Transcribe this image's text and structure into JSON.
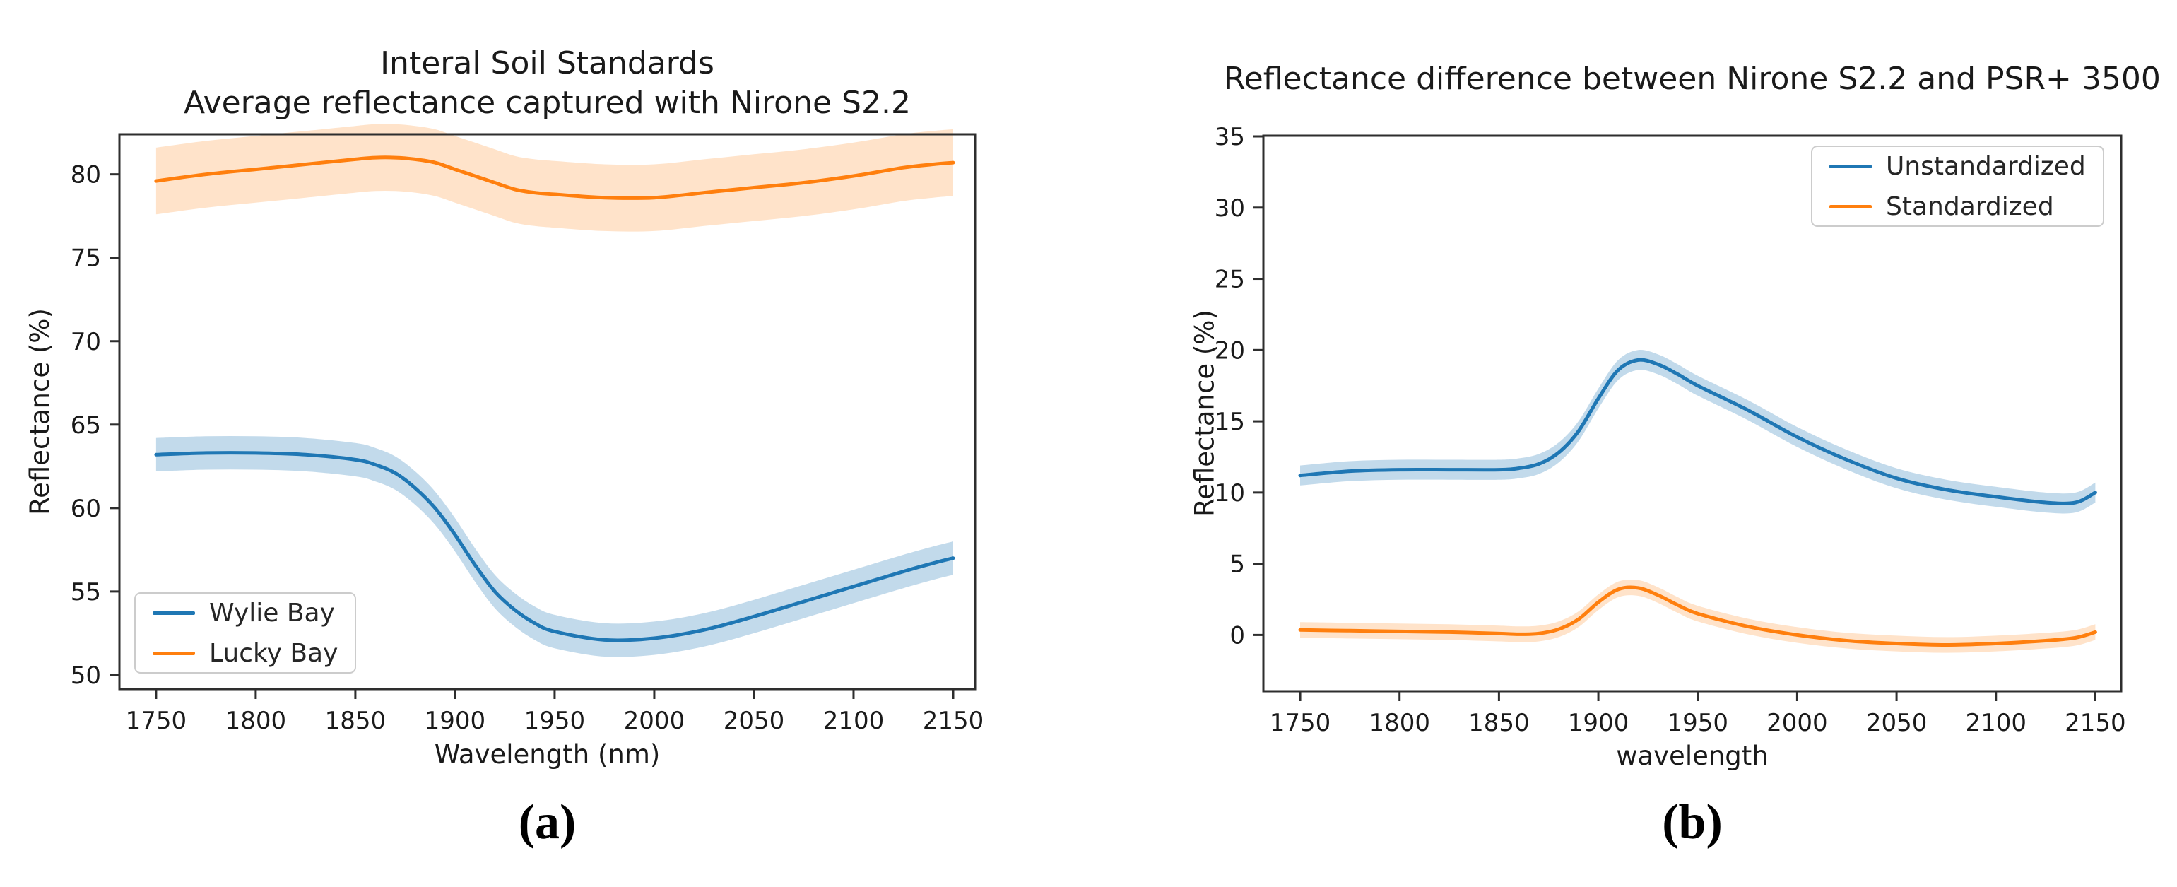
{
  "figure": {
    "caption_a": "(a)",
    "caption_b": "(b)"
  },
  "colors": {
    "blue_line": "#1f77b4",
    "orange_line": "#ff7f0e",
    "blue_band": "rgba(31,119,180,0.27)",
    "orange_band": "rgba(255,127,14,0.22)",
    "spine": "#2e2e2e",
    "text": "#1a1a1a"
  },
  "chart_data": [
    {
      "id": "panel-a",
      "type": "line",
      "title_line1": "Interal Soil Standards",
      "title_line2": "Average reflectance captured with Nirone S2.2",
      "xlabel": "Wavelength (nm)",
      "ylabel": "Reflectance (%)",
      "xlim": [
        1731.6,
        2161.0
      ],
      "ylim": [
        49.15,
        82.4
      ],
      "xticks": [
        1750,
        1800,
        1850,
        1900,
        1950,
        2000,
        2050,
        2100,
        2150
      ],
      "yticks": [
        50,
        55,
        60,
        65,
        70,
        75,
        80
      ],
      "grid": false,
      "legend_position": "lower-left",
      "x": [
        1750,
        1775,
        1800,
        1825,
        1850,
        1860,
        1870,
        1880,
        1890,
        1900,
        1910,
        1920,
        1930,
        1940,
        1950,
        1975,
        2000,
        2025,
        2050,
        2075,
        2100,
        2125,
        2140,
        2150
      ],
      "series": [
        {
          "name": "Wylie Bay",
          "color": "#1f77b4",
          "band_color": "rgba(31,119,180,0.27)",
          "band_halfwidth": 1.0,
          "values": [
            63.2,
            63.3,
            63.3,
            63.2,
            62.9,
            62.6,
            62.1,
            61.2,
            60.0,
            58.4,
            56.6,
            55.0,
            53.9,
            53.1,
            52.6,
            52.1,
            52.2,
            52.7,
            53.5,
            54.4,
            55.3,
            56.2,
            56.7,
            57.0
          ]
        },
        {
          "name": "Lucky Bay",
          "color": "#ff7f0e",
          "band_color": "rgba(255,127,14,0.22)",
          "band_halfwidth": 2.0,
          "values": [
            79.6,
            80.0,
            80.3,
            80.6,
            80.9,
            81.0,
            81.0,
            80.9,
            80.7,
            80.3,
            79.9,
            79.5,
            79.1,
            78.9,
            78.8,
            78.6,
            78.6,
            78.9,
            79.2,
            79.5,
            79.9,
            80.4,
            80.6,
            80.7
          ]
        }
      ]
    },
    {
      "id": "panel-b",
      "type": "line",
      "title_line1": "Reflectance difference between Nirone S2.2 and PSR+ 3500",
      "title_line2": "",
      "xlabel": "wavelength",
      "ylabel": "Reflectance (%)",
      "xlim": [
        1731.5,
        2163.0
      ],
      "ylim": [
        -3.95,
        35.05
      ],
      "xticks": [
        1750,
        1800,
        1850,
        1900,
        1950,
        2000,
        2050,
        2100,
        2150
      ],
      "yticks": [
        0,
        5,
        10,
        15,
        20,
        25,
        30,
        35
      ],
      "grid": false,
      "legend_position": "upper-right",
      "x": [
        1750,
        1775,
        1800,
        1825,
        1850,
        1860,
        1870,
        1880,
        1890,
        1900,
        1910,
        1920,
        1930,
        1940,
        1950,
        1975,
        2000,
        2025,
        2050,
        2075,
        2100,
        2125,
        2140,
        2150
      ],
      "series": [
        {
          "name": "Unstandardized",
          "color": "#1f77b4",
          "band_color": "rgba(31,119,180,0.27)",
          "band_halfwidth": 0.7,
          "values": [
            11.2,
            11.5,
            11.6,
            11.6,
            11.6,
            11.7,
            12.0,
            12.8,
            14.3,
            16.6,
            18.6,
            19.3,
            19.0,
            18.3,
            17.5,
            15.8,
            13.9,
            12.3,
            11.0,
            10.2,
            9.7,
            9.3,
            9.3,
            10.0
          ]
        },
        {
          "name": "Standardized",
          "color": "#ff7f0e",
          "band_color": "rgba(255,127,14,0.22)",
          "band_halfwidth": 0.55,
          "values": [
            0.35,
            0.3,
            0.25,
            0.2,
            0.1,
            0.05,
            0.1,
            0.4,
            1.1,
            2.3,
            3.2,
            3.3,
            2.8,
            2.1,
            1.5,
            0.6,
            0.0,
            -0.4,
            -0.6,
            -0.7,
            -0.6,
            -0.4,
            -0.2,
            0.2
          ]
        }
      ]
    }
  ]
}
